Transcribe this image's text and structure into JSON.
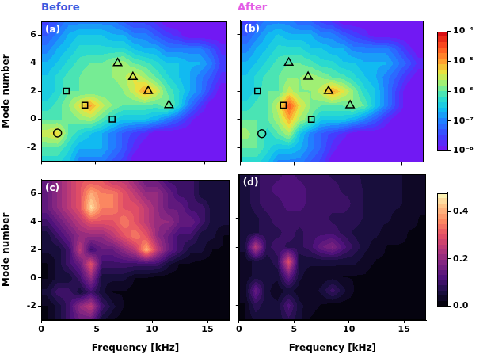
{
  "chart_data": [
    {
      "type": "heatmap",
      "panel": "(a)",
      "title": "Before",
      "log": true,
      "tick_labels": "y",
      "ylabel": "Mode number",
      "xlim": [
        0,
        17
      ],
      "ylim": [
        -3,
        7
      ],
      "xticks": [
        0,
        5,
        10,
        15
      ],
      "yticks": [
        -2,
        0,
        2,
        4,
        6
      ],
      "x_centers": [
        0.5,
        1.5,
        2.5,
        3.5,
        4.5,
        5.5,
        6.5,
        7.5,
        8.5,
        9.5,
        10.5,
        11.5,
        12.5,
        13.5,
        14.5,
        15.5,
        16.5
      ],
      "y_centers": [
        -3,
        -2,
        -1,
        0,
        1,
        2,
        3,
        4,
        5,
        6,
        7
      ],
      "cells": [
        [
          5e-07,
          5e-07,
          3e-07,
          1e-07,
          1e-07,
          1e-07,
          5e-08,
          3e-08,
          1e-08,
          1e-08,
          1e-08,
          1e-08,
          1e-08,
          1e-08,
          1e-08,
          1e-08,
          1e-08
        ],
        [
          1e-06,
          1e-06,
          5e-07,
          2e-07,
          2e-07,
          2e-07,
          1e-07,
          5e-08,
          2e-08,
          1e-08,
          1e-08,
          1e-08,
          1e-08,
          1e-08,
          1e-08,
          1e-08,
          1e-08
        ],
        [
          3e-06,
          5e-06,
          1e-06,
          5e-07,
          3e-07,
          2e-07,
          1e-07,
          5e-08,
          3e-08,
          2e-08,
          1e-08,
          1e-08,
          1e-08,
          1e-08,
          1e-08,
          1e-08,
          1e-08
        ],
        [
          1e-06,
          1e-06,
          1e-06,
          1.5e-06,
          2e-06,
          1e-06,
          5e-07,
          3e-07,
          3e-07,
          3e-07,
          2e-07,
          1e-07,
          5e-08,
          2e-08,
          1e-08,
          1e-08,
          1e-08
        ],
        [
          5e-07,
          8e-07,
          1.5e-06,
          4e-06,
          1e-05,
          3e-06,
          1.5e-06,
          1e-06,
          1e-06,
          1e-06,
          8e-07,
          1.5e-06,
          5e-07,
          1e-07,
          3e-08,
          1e-08,
          1e-08
        ],
        [
          3e-07,
          5e-07,
          1e-06,
          1e-06,
          1e-06,
          1e-06,
          1e-06,
          1.5e-06,
          3e-06,
          1e-05,
          4e-06,
          1e-06,
          5e-07,
          2e-07,
          1e-07,
          3e-08,
          1e-08
        ],
        [
          3e-07,
          5e-07,
          8e-07,
          1e-06,
          1.5e-06,
          1.5e-06,
          1.5e-06,
          2e-06,
          4e-06,
          2e-06,
          1e-06,
          5e-07,
          3e-07,
          2e-07,
          1e-07,
          5e-08,
          2e-08
        ],
        [
          2e-07,
          3e-07,
          5e-07,
          8e-07,
          1e-06,
          1e-06,
          1.5e-06,
          2e-06,
          1e-06,
          8e-07,
          5e-07,
          3e-07,
          3e-07,
          2e-07,
          2e-07,
          1e-07,
          3e-08
        ],
        [
          1e-07,
          2e-07,
          3e-07,
          5e-07,
          5e-07,
          5e-07,
          5e-07,
          5e-07,
          3e-07,
          2e-07,
          2e-07,
          1e-07,
          1e-07,
          1e-07,
          1e-07,
          5e-08,
          2e-08
        ],
        [
          5e-08,
          1e-07,
          2e-07,
          3e-07,
          3e-07,
          3e-07,
          2e-07,
          2e-07,
          1e-07,
          1e-07,
          5e-08,
          3e-08,
          2e-08,
          1e-08,
          1e-08,
          1e-08,
          1e-08
        ],
        [
          3e-08,
          5e-08,
          1e-07,
          1e-07,
          1e-07,
          1e-07,
          1e-07,
          5e-08,
          3e-08,
          3e-08,
          2e-08,
          1e-08,
          1e-08,
          1e-08,
          1e-08,
          1e-08,
          1e-08
        ]
      ],
      "markers": [
        {
          "marker": "circle",
          "x": [
            1.5
          ],
          "y": [
            -1
          ]
        },
        {
          "marker": "square",
          "x": [
            2.3,
            4.0,
            6.5
          ],
          "y": [
            2,
            1,
            0
          ]
        },
        {
          "marker": "triangle",
          "x": [
            7.0,
            8.4,
            9.8,
            11.7
          ],
          "y": [
            4,
            3,
            2,
            1
          ]
        }
      ]
    },
    {
      "type": "heatmap",
      "panel": "(b)",
      "title": "After",
      "log": true,
      "tick_labels": false,
      "xlim": [
        0,
        17
      ],
      "ylim": [
        -3,
        7
      ],
      "xticks": [
        0,
        5,
        10,
        15
      ],
      "yticks": [
        -2,
        0,
        2,
        4,
        6
      ],
      "x_centers": [
        0.5,
        1.5,
        2.5,
        3.5,
        4.5,
        5.5,
        6.5,
        7.5,
        8.5,
        9.5,
        10.5,
        11.5,
        12.5,
        13.5,
        14.5,
        15.5,
        16.5
      ],
      "y_centers": [
        -3,
        -2,
        -1,
        0,
        1,
        2,
        3,
        4,
        5,
        6,
        7
      ],
      "cells": [
        [
          5e-07,
          5e-07,
          3e-07,
          1e-07,
          1e-07,
          1e-07,
          5e-08,
          3e-08,
          1e-08,
          1e-08,
          1e-08,
          1e-08,
          1e-08,
          1e-08,
          1e-08,
          1e-08,
          1e-08
        ],
        [
          1e-06,
          1e-06,
          5e-07,
          3e-07,
          3e-07,
          2e-07,
          1e-07,
          5e-08,
          2e-08,
          1e-08,
          1e-08,
          1e-08,
          1e-08,
          1e-08,
          1e-08,
          1e-08,
          1e-08
        ],
        [
          2e-06,
          1e-06,
          5e-07,
          1e-06,
          2e-06,
          3e-07,
          1e-07,
          5e-08,
          3e-08,
          2e-08,
          1e-08,
          1e-08,
          1e-08,
          1e-08,
          1e-08,
          1e-08,
          1e-08
        ],
        [
          1e-06,
          1e-06,
          1e-06,
          2e-06,
          8e-06,
          2e-06,
          1e-06,
          3e-07,
          3e-07,
          3e-07,
          2e-07,
          1e-07,
          5e-08,
          2e-08,
          1e-08,
          1e-08,
          1e-08
        ],
        [
          5e-07,
          8e-07,
          1e-06,
          3e-06,
          3e-05,
          4e-06,
          1.5e-06,
          1e-06,
          1e-06,
          1e-06,
          1.5e-06,
          1e-06,
          3e-07,
          1e-07,
          3e-08,
          1e-08,
          1e-08
        ],
        [
          3e-07,
          5e-07,
          1e-06,
          1e-06,
          3e-06,
          1.5e-06,
          1.5e-06,
          3e-06,
          1e-05,
          4e-06,
          1.5e-06,
          5e-07,
          3e-07,
          1e-07,
          3e-08,
          1e-08,
          1e-08
        ],
        [
          3e-07,
          5e-07,
          8e-07,
          1e-06,
          1.5e-06,
          1.5e-06,
          2e-06,
          1.5e-06,
          1e-06,
          8e-07,
          5e-07,
          3e-07,
          2e-07,
          1e-07,
          5e-08,
          2e-08,
          1e-08
        ],
        [
          2e-07,
          3e-07,
          5e-07,
          8e-07,
          1e-06,
          1e-06,
          8e-07,
          5e-07,
          5e-07,
          3e-07,
          3e-07,
          2e-07,
          2e-07,
          2e-07,
          1e-07,
          5e-08,
          2e-08
        ],
        [
          1e-07,
          2e-07,
          3e-07,
          5e-07,
          5e-07,
          5e-07,
          3e-07,
          3e-07,
          2e-07,
          2e-07,
          1e-07,
          1e-07,
          1e-07,
          1e-07,
          5e-08,
          2e-08,
          1e-08
        ],
        [
          5e-08,
          1e-07,
          2e-07,
          3e-07,
          2e-07,
          2e-07,
          2e-07,
          1e-07,
          1e-07,
          5e-08,
          3e-08,
          2e-08,
          1e-08,
          1e-08,
          1e-08,
          1e-08,
          1e-08
        ],
        [
          3e-08,
          5e-08,
          1e-07,
          1e-07,
          1e-07,
          5e-08,
          5e-08,
          3e-08,
          2e-08,
          1e-08,
          1e-08,
          1e-08,
          1e-08,
          1e-08,
          1e-08,
          1e-08,
          1e-08
        ]
      ],
      "markers": [
        {
          "marker": "circle",
          "x": [
            2.0
          ],
          "y": [
            -1
          ]
        },
        {
          "marker": "square",
          "x": [
            1.6,
            4.0,
            6.6
          ],
          "y": [
            2,
            1,
            0
          ]
        },
        {
          "marker": "triangle",
          "x": [
            4.5,
            6.3,
            8.2,
            10.2
          ],
          "y": [
            4,
            3,
            2,
            1
          ]
        }
      ],
      "colorbar": {
        "range": [
          1e-08,
          0.0001
        ],
        "ticks": [
          {
            "value": 1e-08,
            "label": "10⁻⁸"
          },
          {
            "value": 1e-07,
            "label": "10⁻⁷"
          },
          {
            "value": 1e-06,
            "label": "10⁻⁶"
          },
          {
            "value": 1e-05,
            "label": "10⁻⁵"
          },
          {
            "value": 0.0001,
            "label": "10⁻⁴"
          }
        ]
      }
    },
    {
      "type": "heatmap",
      "panel": "(c)",
      "log": false,
      "tick_labels": true,
      "xlabel": "Frequency [kHz]",
      "ylabel": "Mode number",
      "xlim": [
        0,
        17
      ],
      "ylim": [
        -3,
        7
      ],
      "xticks": [
        0,
        5,
        10,
        15
      ],
      "yticks": [
        -2,
        0,
        2,
        4,
        6
      ],
      "x_centers": [
        0.5,
        1.5,
        2.5,
        3.5,
        4.5,
        5.5,
        6.5,
        7.5,
        8.5,
        9.5,
        10.5,
        11.5,
        12.5,
        13.5,
        14.5,
        15.5,
        16.5
      ],
      "y_centers": [
        -3,
        -2,
        -1,
        0,
        1,
        2,
        3,
        4,
        5,
        6,
        7
      ],
      "cells": [
        [
          0.02,
          0.05,
          0.1,
          0.15,
          0.15,
          0.05,
          0.02,
          0.01,
          0.01,
          0.01,
          0.01,
          0.01,
          0.01,
          0.01,
          0.01,
          0.01,
          0.01
        ],
        [
          0.02,
          0.05,
          0.1,
          0.2,
          0.25,
          0.1,
          0.05,
          0.02,
          0.01,
          0.01,
          0.01,
          0.01,
          0.01,
          0.01,
          0.01,
          0.01,
          0.01
        ],
        [
          0.05,
          0.1,
          0.1,
          0.05,
          0.1,
          0.05,
          0.02,
          0.02,
          0.01,
          0.01,
          0.01,
          0.01,
          0.01,
          0.01,
          0.01,
          0.01,
          0.01
        ],
        [
          0.02,
          0.05,
          0.05,
          0.1,
          0.2,
          0.05,
          0.05,
          0.05,
          0.02,
          0.02,
          0.01,
          0.01,
          0.01,
          0.01,
          0.01,
          0.01,
          0.01
        ],
        [
          0.02,
          0.05,
          0.1,
          0.15,
          0.3,
          0.1,
          0.1,
          0.1,
          0.1,
          0.1,
          0.1,
          0.05,
          0.02,
          0.02,
          0.01,
          0.01,
          0.01
        ],
        [
          0.05,
          0.05,
          0.1,
          0.25,
          0.1,
          0.15,
          0.15,
          0.2,
          0.25,
          0.4,
          0.25,
          0.15,
          0.1,
          0.05,
          0.05,
          0.02,
          0.02
        ],
        [
          0.05,
          0.1,
          0.15,
          0.2,
          0.2,
          0.2,
          0.25,
          0.3,
          0.35,
          0.3,
          0.2,
          0.15,
          0.1,
          0.1,
          0.05,
          0.05,
          0.02
        ],
        [
          0.1,
          0.15,
          0.2,
          0.25,
          0.3,
          0.3,
          0.3,
          0.35,
          0.3,
          0.25,
          0.2,
          0.2,
          0.15,
          0.15,
          0.1,
          0.05,
          0.05
        ],
        [
          0.15,
          0.2,
          0.25,
          0.3,
          0.45,
          0.35,
          0.35,
          0.3,
          0.3,
          0.25,
          0.2,
          0.15,
          0.15,
          0.1,
          0.1,
          0.05,
          0.05
        ],
        [
          0.15,
          0.2,
          0.25,
          0.3,
          0.4,
          0.35,
          0.35,
          0.3,
          0.25,
          0.2,
          0.2,
          0.15,
          0.1,
          0.1,
          0.05,
          0.05,
          0.05
        ],
        [
          0.15,
          0.2,
          0.25,
          0.3,
          0.3,
          0.3,
          0.25,
          0.25,
          0.2,
          0.15,
          0.15,
          0.1,
          0.1,
          0.1,
          0.05,
          0.05,
          0.05
        ]
      ]
    },
    {
      "type": "heatmap",
      "panel": "(d)",
      "log": false,
      "tick_labels": "x",
      "xlabel": "Frequency [kHz]",
      "xlim": [
        0,
        17
      ],
      "ylim": [
        -3,
        7
      ],
      "xticks": [
        0,
        5,
        10,
        15
      ],
      "yticks": [
        -2,
        0,
        2,
        4,
        6
      ],
      "x_centers": [
        0.5,
        1.5,
        2.5,
        3.5,
        4.5,
        5.5,
        6.5,
        7.5,
        8.5,
        9.5,
        10.5,
        11.5,
        12.5,
        13.5,
        14.5,
        15.5,
        16.5
      ],
      "y_centers": [
        -3,
        -2,
        -1,
        0,
        1,
        2,
        3,
        4,
        5,
        6,
        7
      ],
      "cells": [
        [
          0.02,
          0.05,
          0.05,
          0.05,
          0.08,
          0.05,
          0.02,
          0.01,
          0.01,
          0.01,
          0.01,
          0.01,
          0.01,
          0.01,
          0.01,
          0.01,
          0.01
        ],
        [
          0.02,
          0.08,
          0.05,
          0.05,
          0.12,
          0.05,
          0.03,
          0.02,
          0.01,
          0.01,
          0.01,
          0.01,
          0.01,
          0.01,
          0.01,
          0.01,
          0.01
        ],
        [
          0.03,
          0.15,
          0.05,
          0.03,
          0.05,
          0.03,
          0.03,
          0.05,
          0.1,
          0.05,
          0.02,
          0.01,
          0.01,
          0.01,
          0.01,
          0.01,
          0.01
        ],
        [
          0.03,
          0.05,
          0.05,
          0.05,
          0.15,
          0.05,
          0.03,
          0.03,
          0.03,
          0.02,
          0.02,
          0.02,
          0.01,
          0.01,
          0.01,
          0.01,
          0.01
        ],
        [
          0.03,
          0.05,
          0.05,
          0.08,
          0.3,
          0.05,
          0.05,
          0.05,
          0.05,
          0.05,
          0.05,
          0.03,
          0.02,
          0.02,
          0.01,
          0.01,
          0.01
        ],
        [
          0.05,
          0.25,
          0.08,
          0.1,
          0.08,
          0.08,
          0.1,
          0.15,
          0.18,
          0.12,
          0.08,
          0.05,
          0.03,
          0.02,
          0.02,
          0.02,
          0.02
        ],
        [
          0.05,
          0.06,
          0.08,
          0.08,
          0.1,
          0.08,
          0.1,
          0.1,
          0.1,
          0.08,
          0.06,
          0.05,
          0.05,
          0.03,
          0.03,
          0.02,
          0.02
        ],
        [
          0.05,
          0.06,
          0.08,
          0.1,
          0.1,
          0.1,
          0.1,
          0.1,
          0.08,
          0.08,
          0.08,
          0.06,
          0.05,
          0.05,
          0.03,
          0.03,
          0.02
        ],
        [
          0.05,
          0.08,
          0.1,
          0.1,
          0.12,
          0.12,
          0.1,
          0.1,
          0.1,
          0.1,
          0.08,
          0.06,
          0.05,
          0.05,
          0.05,
          0.03,
          0.03
        ],
        [
          0.05,
          0.08,
          0.1,
          0.12,
          0.12,
          0.12,
          0.1,
          0.1,
          0.1,
          0.08,
          0.08,
          0.06,
          0.05,
          0.05,
          0.05,
          0.03,
          0.03
        ],
        [
          0.05,
          0.08,
          0.1,
          0.1,
          0.12,
          0.1,
          0.1,
          0.1,
          0.08,
          0.08,
          0.08,
          0.05,
          0.05,
          0.05,
          0.05,
          0.03,
          0.03
        ]
      ],
      "colorbar": {
        "range": [
          0,
          0.48
        ],
        "ticks": [
          {
            "value": 0,
            "label": "0.0"
          },
          0.2,
          0.4
        ]
      }
    }
  ]
}
